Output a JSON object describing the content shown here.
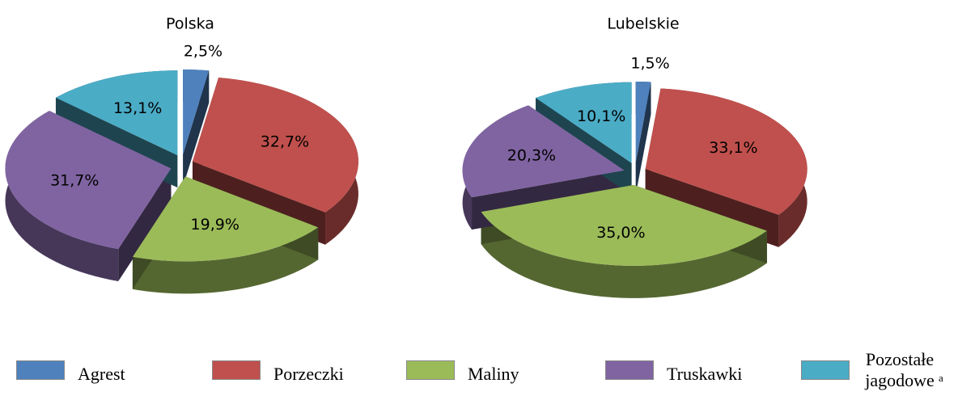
{
  "chart_data": [
    {
      "type": "pie",
      "title": "Polska",
      "values": [
        2.5,
        32.7,
        19.9,
        31.7,
        13.1
      ],
      "value_labels": [
        "2,5%",
        "32,7%",
        "19,9%",
        "31,7%",
        "13,1%"
      ]
    },
    {
      "type": "pie",
      "title": "Lubelskie",
      "values": [
        1.5,
        33.1,
        35.0,
        20.3,
        10.1
      ],
      "value_labels": [
        "1,5%",
        "33,1%",
        "35,0%",
        "20,3%",
        "10,1%"
      ]
    }
  ],
  "legend": {
    "labels": [
      "Agrest",
      "Porzeczki",
      "Maliny",
      "Truskawki",
      "Pozostałe jagodowe"
    ],
    "note": "a",
    "colors": [
      "#4f81bd",
      "#c0504d",
      "#9bbb59",
      "#8064a2",
      "#4bacc6"
    ]
  }
}
